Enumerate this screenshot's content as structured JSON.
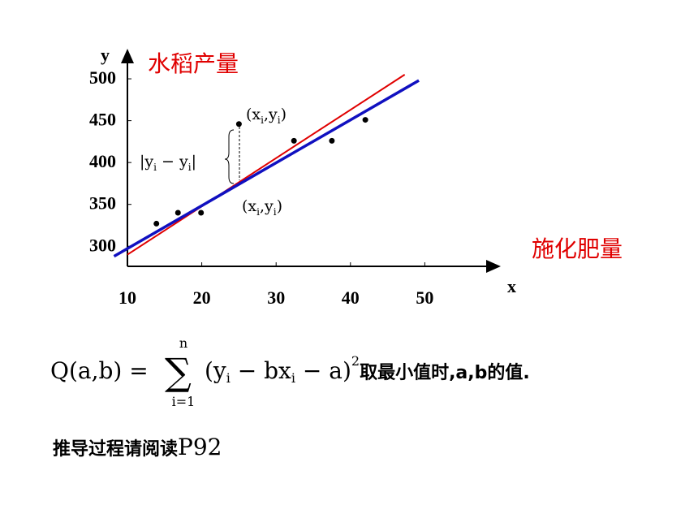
{
  "chart_data": {
    "type": "scatter",
    "x_label": "x",
    "y_label": "y",
    "y_title": "水稻产量",
    "x_title": "施化肥量",
    "xlim": [
      10,
      60
    ],
    "ylim": [
      276,
      534
    ],
    "xticks": [
      10,
      20,
      30,
      40,
      50
    ],
    "yticks": [
      300,
      350,
      400,
      450,
      500
    ],
    "series": [
      {
        "color": "#000000",
        "x": [
          13.9,
          16.8,
          19.9,
          25,
          32.4,
          37.5,
          42
        ],
        "values": [
          327,
          340,
          340,
          446,
          426,
          426,
          451
        ]
      }
    ],
    "lines": [
      {
        "color": "#e00000",
        "x": [
          10,
          47.3
        ],
        "values": [
          290,
          505
        ]
      },
      {
        "color": "#1010c0",
        "x": [
          8.2,
          49.2
        ],
        "values": [
          288,
          498
        ]
      }
    ],
    "point_label": [
      "(x",
      "i",
      ",y",
      "i",
      ")"
    ],
    "fit_label": [
      "(x",
      "i",
      ",y",
      "i",
      ")"
    ],
    "residual_label": [
      "|y",
      "i",
      " − y",
      "i",
      "|"
    ]
  },
  "formula": {
    "lhs": "Q(a,b) =",
    "sigma": "∑",
    "sum_top": "n",
    "sum_bottom": "i=1",
    "body": [
      "(y",
      "i",
      " − bx",
      "i",
      " − a)"
    ],
    "power": "2",
    "tail": "取最小值时,a,b的值."
  },
  "note": {
    "text": "推导过程请阅读",
    "page": "P92"
  }
}
